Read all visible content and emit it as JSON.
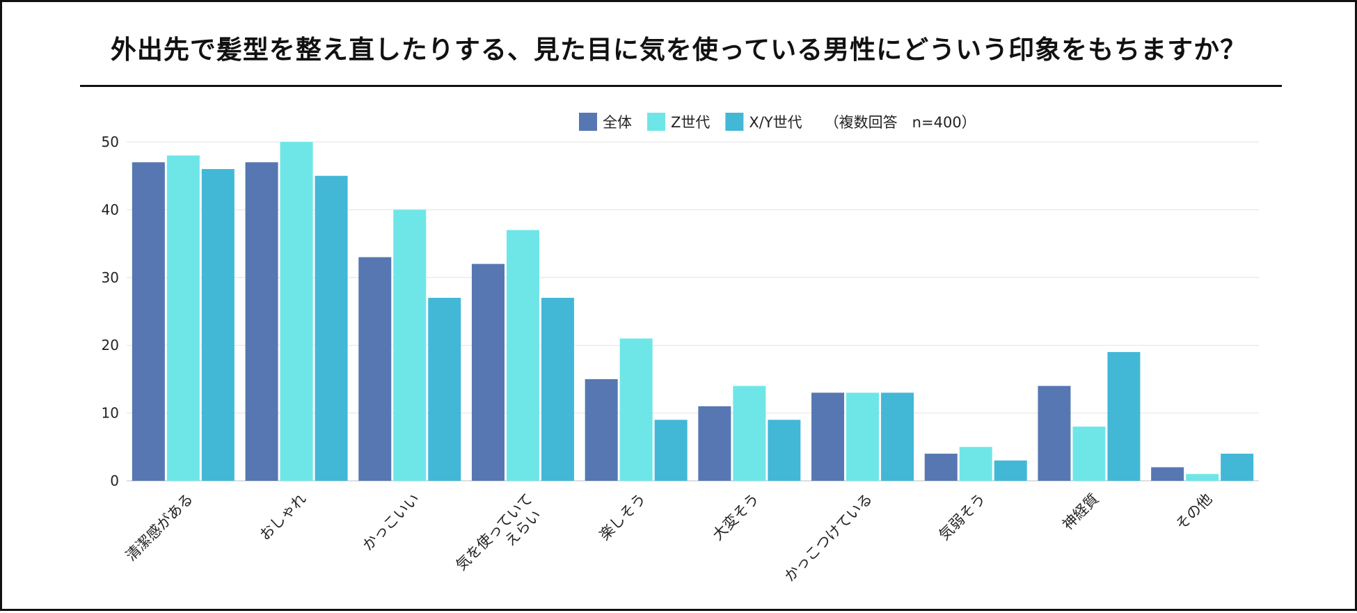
{
  "chart_data": {
    "type": "bar",
    "title": "外出先で髪型を整え直したりする、見た目に気を使っている男性にどういう印象をもちますか？",
    "legend_note": "（複数回答　n=400）",
    "xlabel": "",
    "ylabel": "",
    "ylim": [
      0,
      50
    ],
    "yticks": [
      0,
      10,
      20,
      30,
      40,
      50
    ],
    "grid": true,
    "legend_position": "top-center",
    "categories": [
      [
        "清潔感がある"
      ],
      [
        "おしゃれ"
      ],
      [
        "かっこいい"
      ],
      [
        "気を使っていて",
        "えらい"
      ],
      [
        "楽しそう"
      ],
      [
        "大変そう"
      ],
      [
        "かっこつけている"
      ],
      [
        "気弱そう"
      ],
      [
        "神経質"
      ],
      [
        "その他"
      ]
    ],
    "series": [
      {
        "name": "全体",
        "color": "#5677b1",
        "values": [
          47,
          47,
          33,
          32,
          15,
          11,
          13,
          4,
          14,
          2
        ]
      },
      {
        "name": "Z世代",
        "color": "#6ee6e8",
        "values": [
          48,
          50,
          40,
          37,
          21,
          14,
          13,
          5,
          8,
          1
        ]
      },
      {
        "name": "X/Y世代",
        "color": "#42b8d6",
        "values": [
          46,
          45,
          27,
          27,
          9,
          9,
          13,
          3,
          19,
          4
        ]
      }
    ]
  }
}
